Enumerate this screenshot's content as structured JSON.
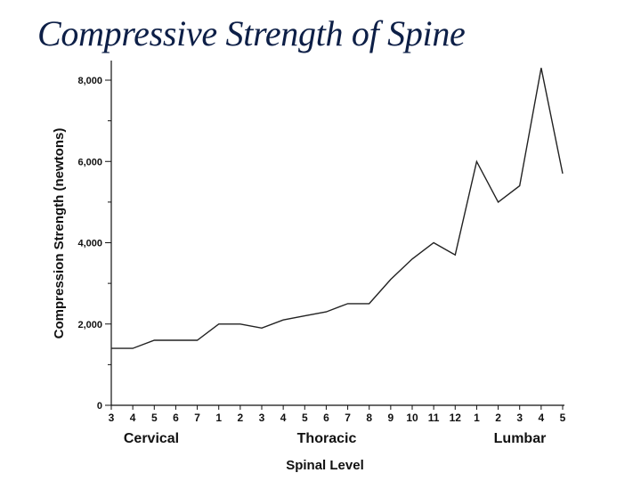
{
  "title": "Compressive Strength of Spine",
  "chart_data": {
    "type": "line",
    "title": "Compressive Strength of Spine",
    "xlabel": "Spinal Level",
    "ylabel": "Compression Strength (newtons)",
    "ylim": [
      0,
      8000
    ],
    "yticks": [
      0,
      2000,
      4000,
      6000,
      8000
    ],
    "ytick_labels": [
      "0",
      "2,000",
      "4,000",
      "6,000",
      "8,000"
    ],
    "grid": false,
    "categories": [
      "3",
      "4",
      "5",
      "6",
      "7",
      "1",
      "2",
      "3",
      "4",
      "5",
      "6",
      "7",
      "8",
      "9",
      "10",
      "11",
      "12",
      "1",
      "2",
      "3",
      "4",
      "5"
    ],
    "groups": [
      {
        "name": "Cervical",
        "start": 0,
        "end": 4
      },
      {
        "name": "Thoracic",
        "start": 5,
        "end": 16
      },
      {
        "name": "Lumbar",
        "start": 17,
        "end": 21
      }
    ],
    "values": [
      1400,
      1400,
      1600,
      1600,
      1600,
      2000,
      2000,
      1900,
      2100,
      2200,
      2300,
      2500,
      2500,
      3100,
      3600,
      4000,
      3700,
      6000,
      5000,
      5400,
      8300,
      5700
    ]
  }
}
